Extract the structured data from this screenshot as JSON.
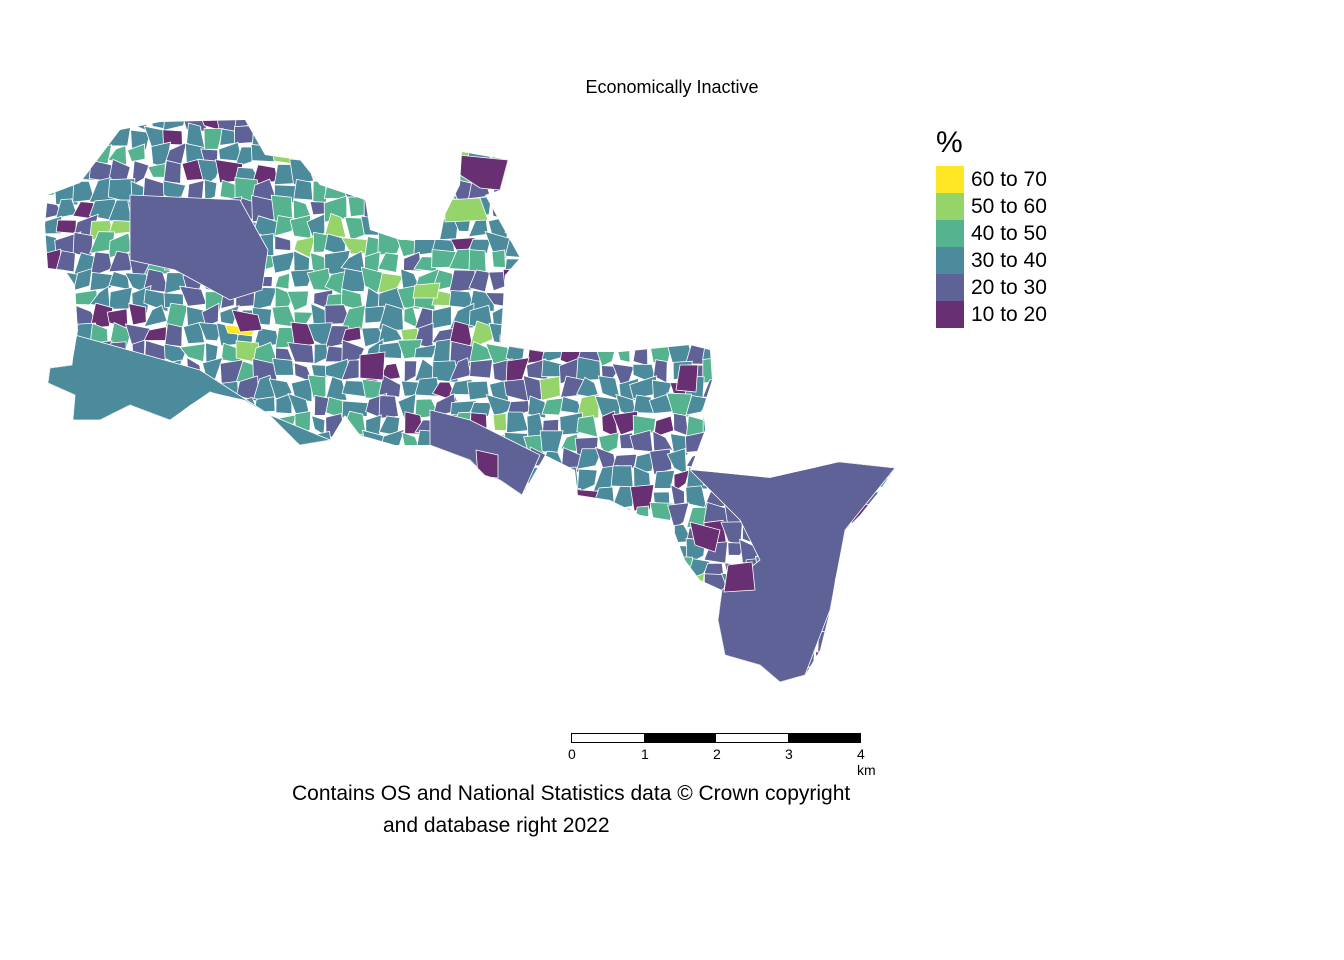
{
  "map": {
    "title": "Economically Inactive",
    "legend": {
      "title": "%",
      "items": [
        {
          "label": "60 to 70",
          "color": "#fde725"
        },
        {
          "label": "50 to 60",
          "color": "#95d46a"
        },
        {
          "label": "40 to 50",
          "color": "#56b38f"
        },
        {
          "label": "30 to 40",
          "color": "#4c8b9b"
        },
        {
          "label": "20 to 30",
          "color": "#5e6296"
        },
        {
          "label": "10 to 20",
          "color": "#682f72"
        }
      ]
    },
    "scale_bar": {
      "labels": [
        "0",
        "1",
        "2",
        "3",
        "4 km"
      ]
    },
    "attribution": {
      "line1": "Contains OS and National Statistics data © Crown copyright",
      "line2": "and database right 2022"
    }
  }
}
